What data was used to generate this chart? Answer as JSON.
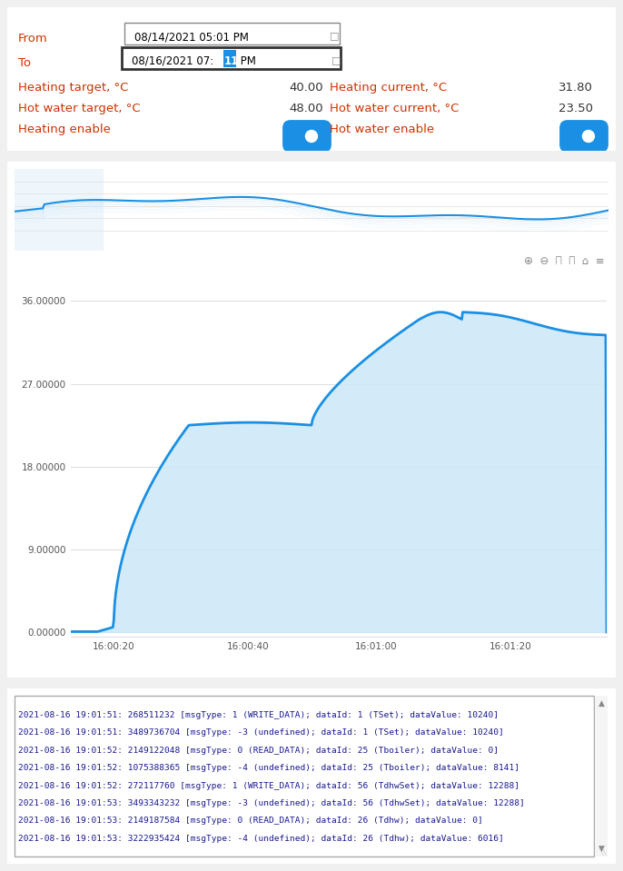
{
  "bg_color": "#f0f0f0",
  "panel_bg": "#ffffff",
  "from_date": "08/14/2021 05:01 PM",
  "to_date_prefix": "08/16/2021 07:",
  "to_date_highlighted": "11",
  "to_date_suffix": " PM",
  "heating_target_label": "Heating target, °C",
  "heating_target_value": "40.00",
  "heating_current_label": "Heating current, °C",
  "heating_current_value": "31.80",
  "hot_water_target_label": "Hot water target, °C",
  "hot_water_target_value": "48.00",
  "hot_water_current_label": "Hot water current, °C",
  "hot_water_current_value": "23.50",
  "heating_enable_label": "Heating enable",
  "hot_water_enable_label": "Hot water enable",
  "toggle_color": "#1a8fe3",
  "label_color": "#cc3300",
  "value_color": "#333333",
  "chart_line_color": "#1a8fe3",
  "chart_fill_color": "#cce8f8",
  "mini_chart_line_color": "#1a8fe3",
  "yticks": [
    0.0,
    9.0,
    18.0,
    27.0,
    36.0
  ],
  "ytick_labels": [
    "0.00000",
    "9.00000",
    "18.00000",
    "27.00000",
    "36.00000"
  ],
  "xtick_labels": [
    "16:00:20",
    "16:00:40",
    "16:01:00",
    "16:01:20"
  ],
  "grid_color": "#e0e0e0",
  "icon_color": "#888888",
  "log_lines": [
    "2021-08-16 19:01:51: 268511232 [msgType: 1 (WRITE_DATA); dataId: 1 (TSet); dataValue: 10240]",
    "2021-08-16 19:01:51: 3489736704 [msgType: -3 (undefined); dataId: 1 (TSet); dataValue: 10240]",
    "2021-08-16 19:01:52: 2149122048 [msgType: 0 (READ_DATA); dataId: 25 (Tboiler); dataValue: 0]",
    "2021-08-16 19:01:52: 1075388365 [msgType: -4 (undefined); dataId: 25 (Tboiler); dataValue: 8141]",
    "2021-08-16 19:01:52: 272117760 [msgType: 1 (WRITE_DATA); dataId: 56 (TdhwSet); dataValue: 12288]",
    "2021-08-16 19:01:53: 3493343232 [msgType: -3 (undefined); dataId: 56 (TdhwSet); dataValue: 12288]",
    "2021-08-16 19:01:53: 2149187584 [msgType: 0 (READ_DATA); dataId: 26 (Tdhw); dataValue: 0]",
    "2021-08-16 19:01:53: 3222935424 [msgType: -4 (undefined); dataId: 26 (Tdhw); dataValue: 6016]"
  ],
  "log_text_color": "#1a1a8e",
  "log_bg": "#ffffff",
  "log_border_color": "#999999"
}
